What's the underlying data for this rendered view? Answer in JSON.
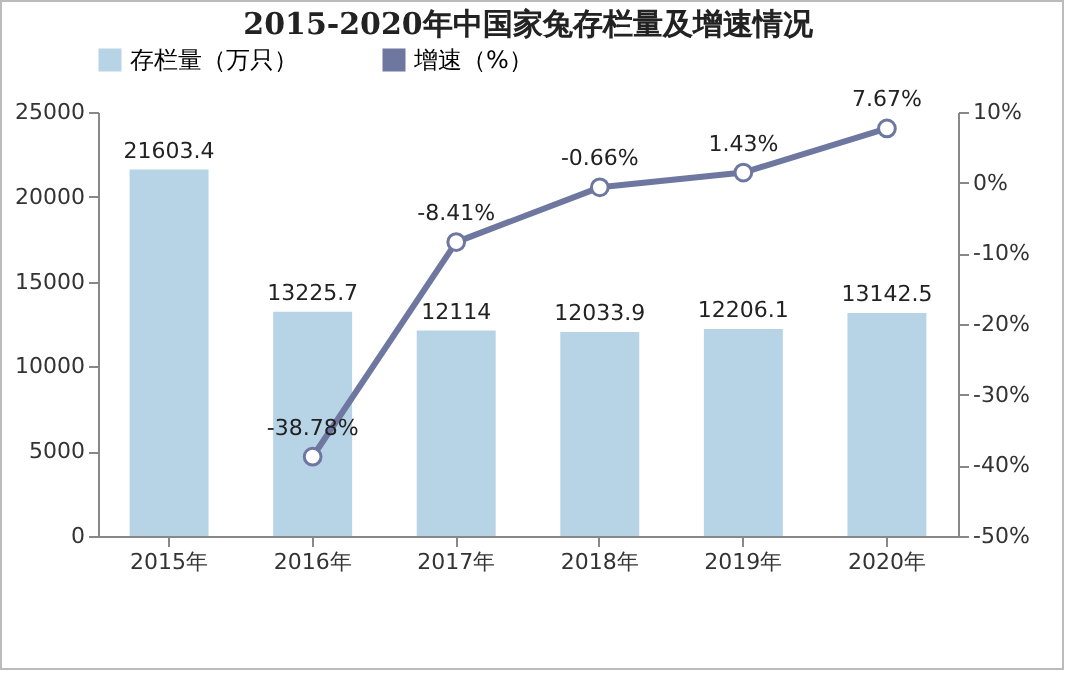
{
  "chart_data": {
    "type": "bar",
    "title": "2015-2020年中国家兔存栏量及增速情况",
    "categories": [
      "2015年",
      "2016年",
      "2017年",
      "2018年",
      "2019年",
      "2020年"
    ],
    "series": [
      {
        "name": "存栏量（万只）",
        "color": "#b7d4e6",
        "values": [
          21603.4,
          13225.7,
          12114,
          12033.9,
          12206.1,
          13142.5
        ],
        "value_labels": [
          "21603.4",
          "13225.7",
          "12114",
          "12033.9",
          "12206.1",
          "13142.5"
        ]
      },
      {
        "name": "增速（%）",
        "type": "line",
        "axis": "y2",
        "color": "#6d77a0",
        "values": [
          null,
          -38.78,
          -8.41,
          -0.66,
          1.43,
          7.67
        ],
        "value_labels": [
          null,
          "-38.78%",
          "-8.41%",
          "-0.66%",
          "1.43%",
          "7.67%"
        ]
      }
    ],
    "ylim": [
      0,
      25000
    ],
    "yticks": [
      0,
      5000,
      10000,
      15000,
      20000,
      25000
    ],
    "y2lim": [
      -50,
      10
    ],
    "y2ticks": [
      {
        "value": -50,
        "label": "-50%"
      },
      {
        "value": -40,
        "label": "-40%"
      },
      {
        "value": -30,
        "label": "-30%"
      },
      {
        "value": -20,
        "label": "-20%"
      },
      {
        "value": -10,
        "label": "-10%"
      },
      {
        "value": 0,
        "label": "0%"
      },
      {
        "value": 10,
        "label": "10%"
      }
    ],
    "marker": "circle",
    "legend": "top"
  }
}
